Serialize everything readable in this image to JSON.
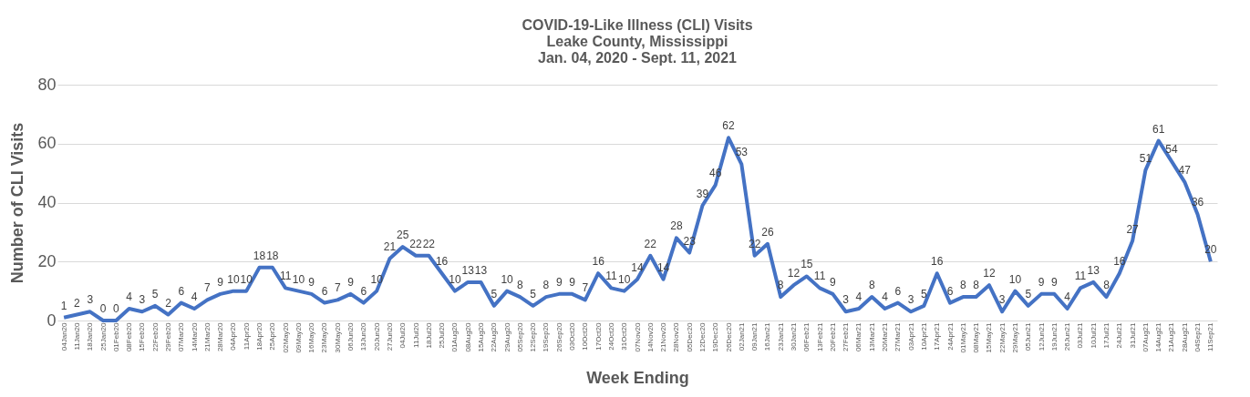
{
  "chart_data": {
    "type": "line",
    "title": [
      "COVID-19-Like Illness (CLI) Visits",
      "Leake County, Mississippi",
      "Jan. 04, 2020 - Sept. 11, 2021"
    ],
    "xlabel": "Week Ending",
    "ylabel": "Number of CLI Visits",
    "categories": [
      "04Jan20",
      "11Jan20",
      "18Jan20",
      "25Jan20",
      "01Feb20",
      "08Feb20",
      "15Feb20",
      "22Feb20",
      "29Feb20",
      "07Mar20",
      "14Mar20",
      "21Mar20",
      "28Mar20",
      "04Apr20",
      "11Apr20",
      "18Apr20",
      "25Apr20",
      "02May20",
      "09May20",
      "16May20",
      "23May20",
      "30May20",
      "06Jun20",
      "13Jun20",
      "20Jun20",
      "27Jun20",
      "04Jul20",
      "11Jul20",
      "18Jul20",
      "25Jul20",
      "01Aug20",
      "08Aug20",
      "15Aug20",
      "22Aug20",
      "29Aug20",
      "05Sep20",
      "12Sep20",
      "19Sep20",
      "26Sep20",
      "03Oct20",
      "10Oct20",
      "17Oct20",
      "24Oct20",
      "31Oct20",
      "07Nov20",
      "14Nov20",
      "21Nov20",
      "28Nov20",
      "05Dec20",
      "12Dec20",
      "19Dec20",
      "26Dec20",
      "02Jan21",
      "09Jan21",
      "16Jan21",
      "23Jan21",
      "30Jan21",
      "06Feb21",
      "13Feb21",
      "20Feb21",
      "27Feb21",
      "06Mar21",
      "13Mar21",
      "20Mar21",
      "27Mar21",
      "03Apr21",
      "10Apr21",
      "17Apr21",
      "24Apr21",
      "01May21",
      "08May21",
      "15May21",
      "22May21",
      "29May21",
      "05Jun21",
      "12Jun21",
      "19Jun21",
      "26Jun21",
      "03Jul21",
      "10Jul21",
      "17Jul21",
      "24Jul21",
      "31Jul21",
      "07Aug21",
      "14Aug21",
      "21Aug21",
      "28Aug21",
      "04Sep21",
      "11Sep21"
    ],
    "series": [
      {
        "color": "#4472c4",
        "values": [
          1,
          2,
          3,
          0,
          0,
          4,
          3,
          5,
          2,
          6,
          4,
          7,
          9,
          10,
          10,
          18,
          18,
          11,
          10,
          9,
          6,
          7,
          9,
          6,
          10,
          21,
          25,
          22,
          22,
          16,
          10,
          13,
          13,
          5,
          10,
          8,
          5,
          8,
          9,
          9,
          7,
          16,
          11,
          10,
          14,
          22,
          14,
          28,
          23,
          39,
          46,
          62,
          53,
          22,
          26,
          8,
          12,
          15,
          11,
          9,
          3,
          4,
          8,
          4,
          6,
          3,
          5,
          16,
          6,
          8,
          8,
          12,
          3,
          10,
          5,
          9,
          9,
          4,
          11,
          13,
          8,
          16,
          27,
          51,
          61,
          54,
          47,
          36,
          20
        ]
      }
    ],
    "ylim": [
      0,
      80
    ],
    "yticks": [
      0,
      20,
      40,
      60,
      80
    ],
    "grid": "y",
    "legend": false,
    "marker": "none",
    "line_style": "solid",
    "data_labels": true
  }
}
